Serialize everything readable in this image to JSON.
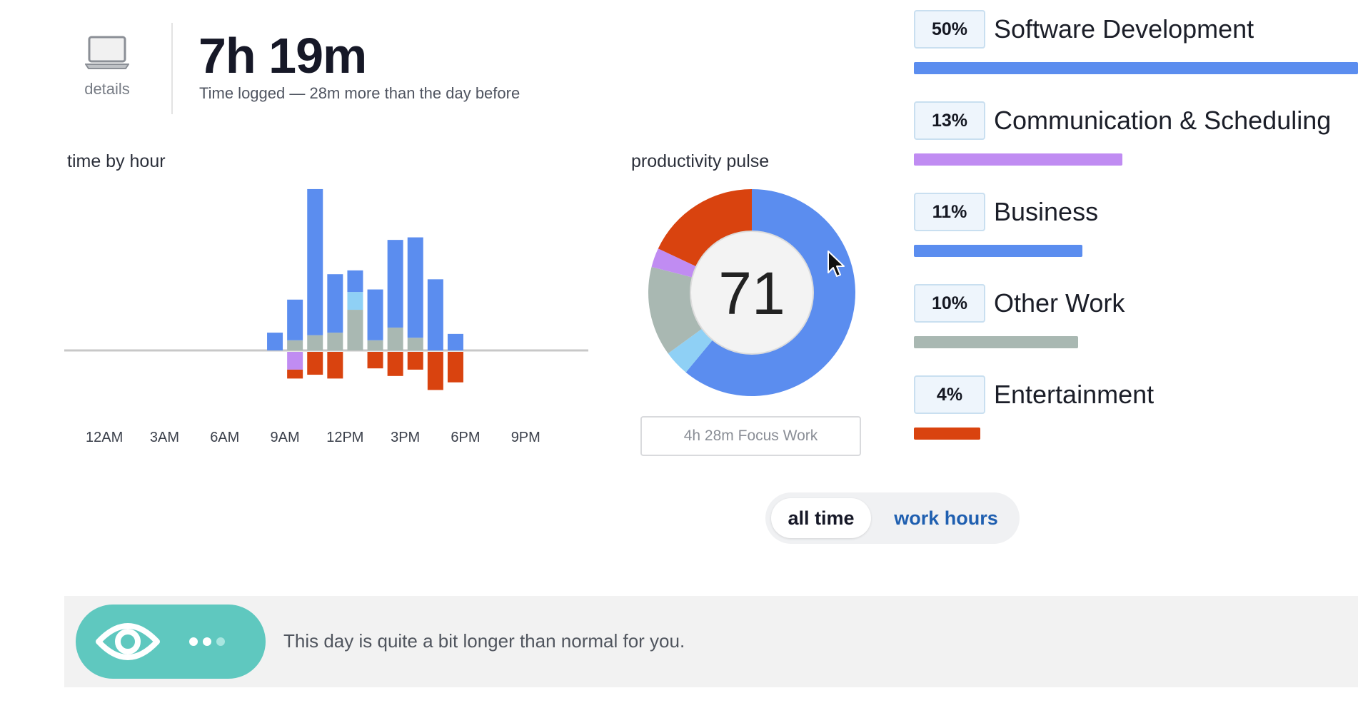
{
  "header": {
    "details_label": "details",
    "total_time": "7h 19m",
    "subtitle": "Time logged — 28m more than the day before"
  },
  "time_by_hour": {
    "title": "time by hour",
    "x_ticks": [
      "12AM",
      "3AM",
      "6AM",
      "9AM",
      "12PM",
      "3PM",
      "6PM",
      "9PM"
    ],
    "colors": {
      "software": "#5b8def",
      "light_blue": "#8fd0f5",
      "gray": "#a9b8b2",
      "purple": "#c08cf2",
      "red": "#d9430f",
      "axis": "#c8c8c8"
    }
  },
  "chart_data": {
    "type": "bar",
    "title": "time by hour",
    "categories": [
      "12AM",
      "1AM",
      "2AM",
      "3AM",
      "4AM",
      "5AM",
      "6AM",
      "7AM",
      "8AM",
      "9AM",
      "10AM",
      "11AM",
      "12PM",
      "1PM",
      "2PM",
      "3PM",
      "4PM",
      "5PM",
      "6PM",
      "7PM",
      "8PM",
      "9PM",
      "10PM",
      "11PM"
    ],
    "stacked": true,
    "series": [
      {
        "values": [
          0,
          0,
          0,
          0,
          0,
          0,
          0,
          0,
          0,
          0,
          0,
          0,
          0,
          0,
          0,
          0,
          0,
          0,
          0,
          0,
          0,
          0,
          0,
          0
        ]
      }
    ],
    "hourly": [
      {
        "hour": 10,
        "above": [
          {
            "c": "software",
            "v": 14
          }
        ],
        "below": []
      },
      {
        "hour": 11,
        "above": [
          {
            "c": "gray",
            "v": 8
          },
          {
            "c": "software",
            "v": 32
          }
        ],
        "below": [
          {
            "c": "purple",
            "v": 14
          },
          {
            "c": "red",
            "v": 7
          }
        ]
      },
      {
        "hour": 12,
        "above": [
          {
            "c": "gray",
            "v": 12
          },
          {
            "c": "software",
            "v": 115
          }
        ],
        "below": [
          {
            "c": "red",
            "v": 18
          }
        ]
      },
      {
        "hour": 13,
        "above": [
          {
            "c": "gray",
            "v": 14
          },
          {
            "c": "software",
            "v": 46
          }
        ],
        "below": [
          {
            "c": "red",
            "v": 21
          }
        ]
      },
      {
        "hour": 14,
        "above": [
          {
            "c": "gray",
            "v": 32
          },
          {
            "c": "light_blue",
            "v": 14
          },
          {
            "c": "software",
            "v": 17
          }
        ],
        "below": []
      },
      {
        "hour": 15,
        "above": [
          {
            "c": "gray",
            "v": 8
          },
          {
            "c": "software",
            "v": 40
          }
        ],
        "below": [
          {
            "c": "red",
            "v": 13
          }
        ]
      },
      {
        "hour": 16,
        "above": [
          {
            "c": "gray",
            "v": 18
          },
          {
            "c": "software",
            "v": 69
          }
        ],
        "below": [
          {
            "c": "red",
            "v": 19
          }
        ]
      },
      {
        "hour": 17,
        "above": [
          {
            "c": "gray",
            "v": 10
          },
          {
            "c": "software",
            "v": 79
          }
        ],
        "below": [
          {
            "c": "red",
            "v": 14
          }
        ]
      },
      {
        "hour": 18,
        "above": [
          {
            "c": "software",
            "v": 56
          }
        ],
        "below": [
          {
            "c": "red",
            "v": 30
          }
        ]
      },
      {
        "hour": 19,
        "above": [
          {
            "c": "software",
            "v": 13
          }
        ],
        "below": [
          {
            "c": "red",
            "v": 24
          }
        ]
      }
    ]
  },
  "pulse": {
    "title": "productivity pulse",
    "score": "71",
    "focus_work": "4h 28m Focus Work",
    "segments": [
      {
        "color": "#5b8def",
        "fraction": 0.61
      },
      {
        "color": "#8fd0f5",
        "fraction": 0.04
      },
      {
        "color": "#a9b8b2",
        "fraction": 0.14
      },
      {
        "color": "#c08cf2",
        "fraction": 0.03
      },
      {
        "color": "#d9430f",
        "fraction": 0.18
      }
    ]
  },
  "categories": [
    {
      "pct": "50%",
      "name": "Software Development",
      "color": "#5b8def",
      "fraction": 1.0
    },
    {
      "pct": "13%",
      "name": "Communication & Scheduling",
      "color": "#c08cf2",
      "fraction": 0.47
    },
    {
      "pct": "11%",
      "name": "Business",
      "color": "#5b8def",
      "fraction": 0.38
    },
    {
      "pct": "10%",
      "name": "Other Work",
      "color": "#a9b8b2",
      "fraction": 0.37
    },
    {
      "pct": "4%",
      "name": "Entertainment",
      "color": "#d9430f",
      "fraction": 0.15
    }
  ],
  "toggle": {
    "all_time": "all time",
    "work_hours": "work hours"
  },
  "insight": {
    "text": "This day is quite a bit longer than normal for you.",
    "icon": "eye-icon",
    "accent": "#5fc8bf"
  }
}
